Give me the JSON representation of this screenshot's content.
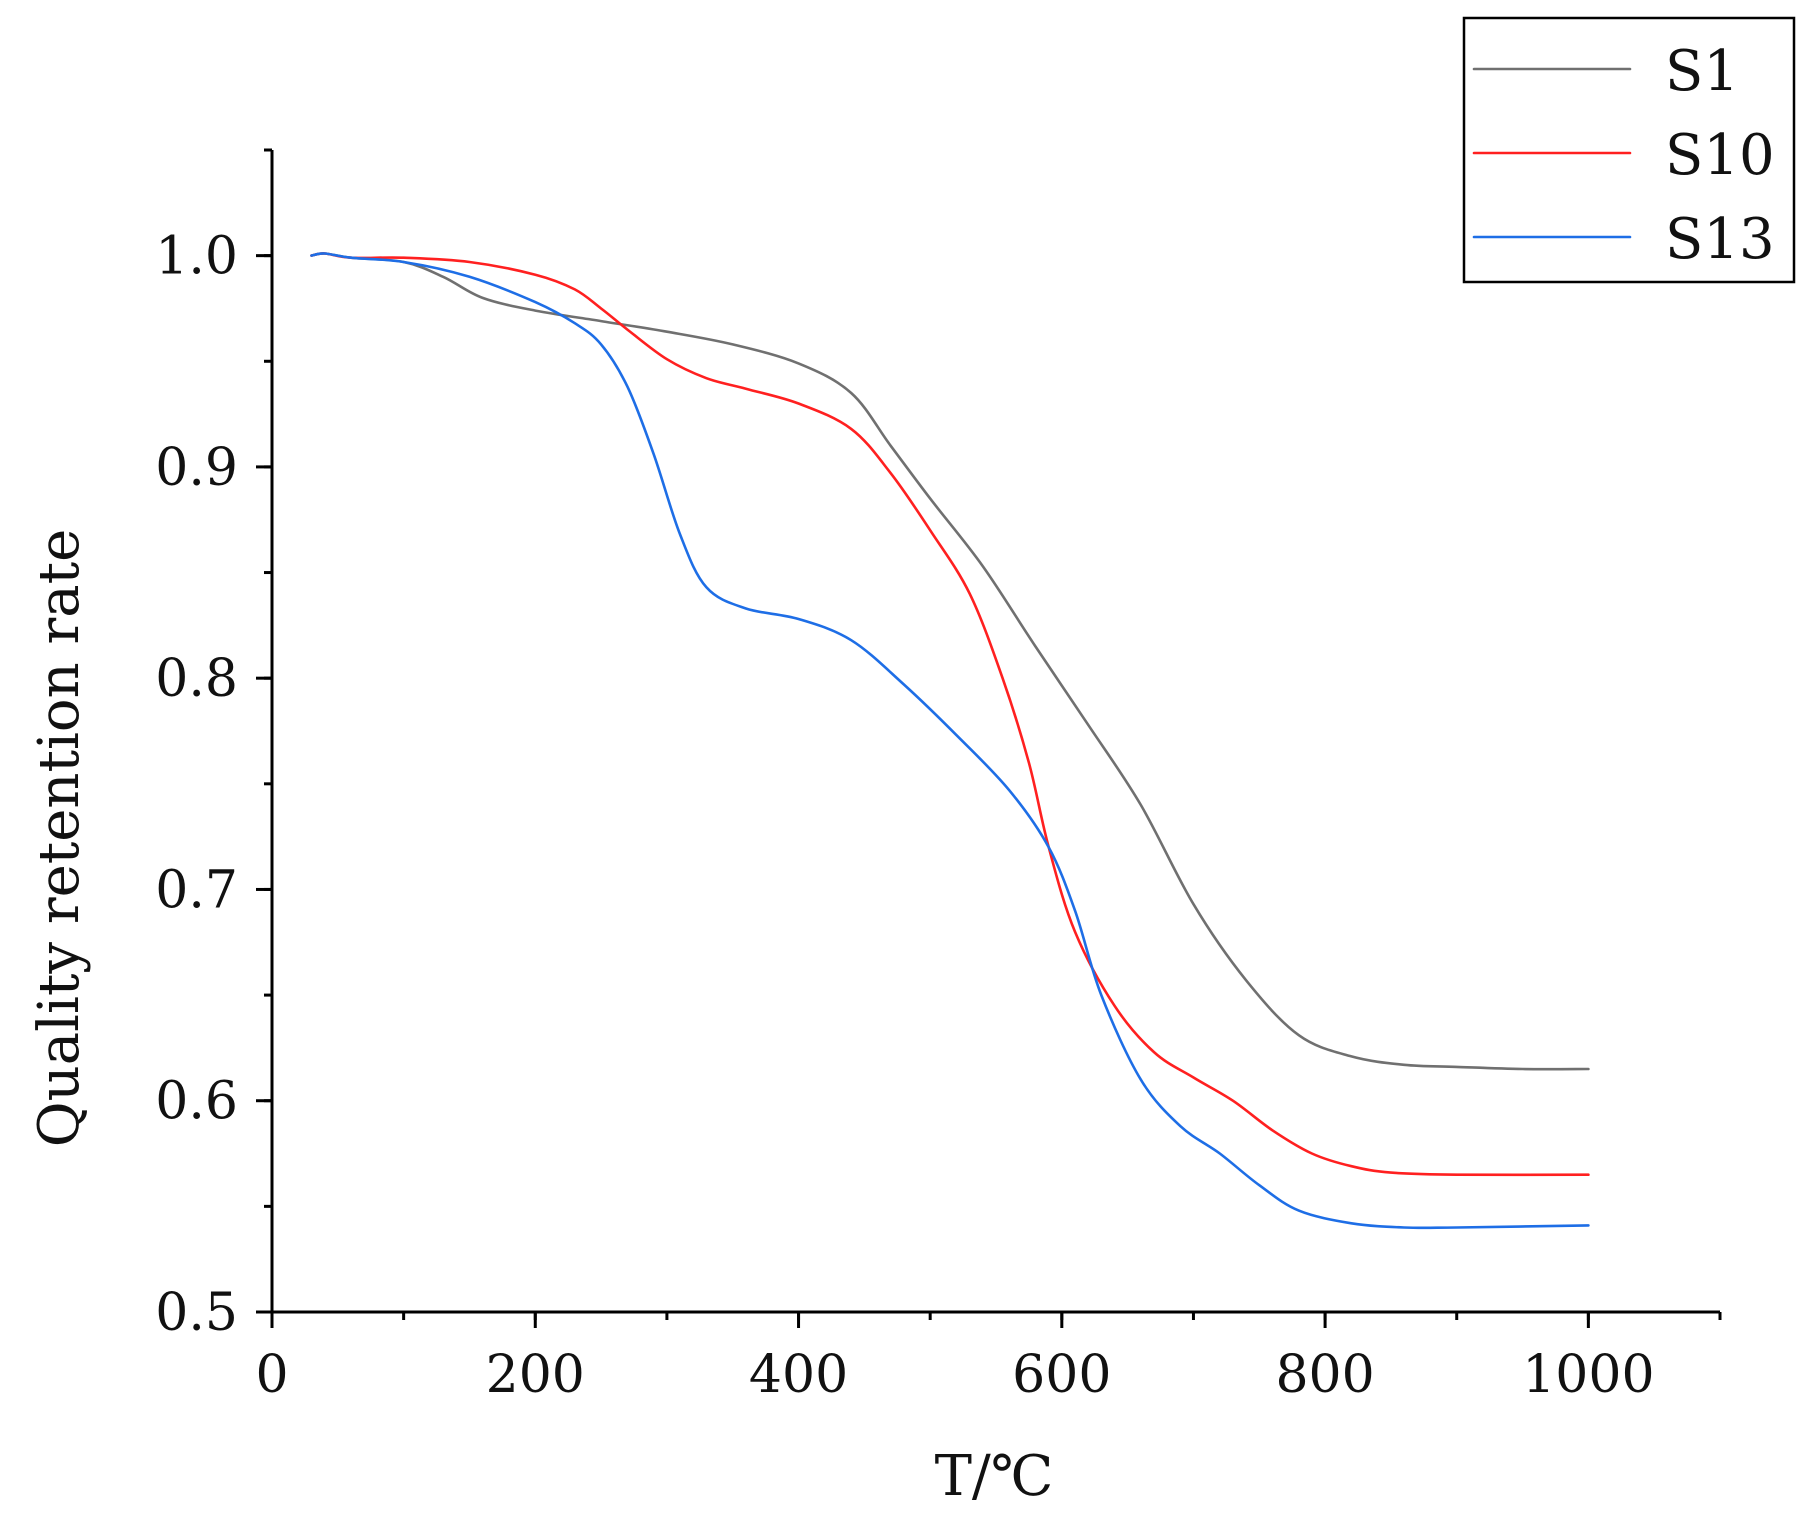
{
  "chart_data": {
    "type": "line",
    "xlabel": "T/℃",
    "ylabel": "Quality retention rate",
    "xlim": [
      0,
      1100
    ],
    "ylim": [
      0.5,
      1.05
    ],
    "x_ticks": [
      0,
      200,
      400,
      600,
      800,
      1000
    ],
    "x_tick_labels": [
      "0",
      "200",
      "400",
      "600",
      "800",
      "1000"
    ],
    "x_minor_step": 100,
    "y_ticks": [
      0.5,
      0.6,
      0.7,
      0.8,
      0.9,
      1.0
    ],
    "y_tick_labels": [
      "0.5",
      "0.6",
      "0.7",
      "0.8",
      "0.9",
      "1.0"
    ],
    "y_minor_step": 0.05,
    "grid": false,
    "legend_position": "top-right",
    "series": [
      {
        "name": "S1",
        "color": "#707070",
        "points": [
          [
            30,
            1.0
          ],
          [
            40,
            1.001
          ],
          [
            60,
            0.999
          ],
          [
            100,
            0.997
          ],
          [
            130,
            0.99
          ],
          [
            160,
            0.98
          ],
          [
            200,
            0.974
          ],
          [
            250,
            0.969
          ],
          [
            300,
            0.964
          ],
          [
            350,
            0.958
          ],
          [
            400,
            0.949
          ],
          [
            440,
            0.935
          ],
          [
            470,
            0.91
          ],
          [
            500,
            0.885
          ],
          [
            540,
            0.853
          ],
          [
            580,
            0.815
          ],
          [
            620,
            0.778
          ],
          [
            660,
            0.74
          ],
          [
            700,
            0.693
          ],
          [
            740,
            0.657
          ],
          [
            780,
            0.631
          ],
          [
            820,
            0.621
          ],
          [
            860,
            0.617
          ],
          [
            900,
            0.616
          ],
          [
            950,
            0.615
          ],
          [
            1000,
            0.615
          ]
        ]
      },
      {
        "name": "S10",
        "color": "#ff2020",
        "points": [
          [
            30,
            1.0
          ],
          [
            40,
            1.001
          ],
          [
            60,
            0.999
          ],
          [
            100,
            0.999
          ],
          [
            150,
            0.997
          ],
          [
            200,
            0.991
          ],
          [
            230,
            0.984
          ],
          [
            250,
            0.975
          ],
          [
            270,
            0.965
          ],
          [
            300,
            0.951
          ],
          [
            330,
            0.942
          ],
          [
            360,
            0.937
          ],
          [
            400,
            0.93
          ],
          [
            440,
            0.918
          ],
          [
            470,
            0.897
          ],
          [
            500,
            0.87
          ],
          [
            530,
            0.84
          ],
          [
            555,
            0.8
          ],
          [
            575,
            0.76
          ],
          [
            590,
            0.72
          ],
          [
            610,
            0.68
          ],
          [
            640,
            0.645
          ],
          [
            670,
            0.623
          ],
          [
            700,
            0.611
          ],
          [
            730,
            0.6
          ],
          [
            760,
            0.586
          ],
          [
            790,
            0.575
          ],
          [
            820,
            0.569
          ],
          [
            850,
            0.566
          ],
          [
            900,
            0.565
          ],
          [
            1000,
            0.565
          ]
        ]
      },
      {
        "name": "S13",
        "color": "#1e6ee6",
        "points": [
          [
            30,
            1.0
          ],
          [
            40,
            1.001
          ],
          [
            60,
            0.999
          ],
          [
            100,
            0.997
          ],
          [
            150,
            0.99
          ],
          [
            200,
            0.978
          ],
          [
            230,
            0.968
          ],
          [
            250,
            0.958
          ],
          [
            270,
            0.938
          ],
          [
            290,
            0.906
          ],
          [
            310,
            0.868
          ],
          [
            330,
            0.843
          ],
          [
            360,
            0.833
          ],
          [
            400,
            0.828
          ],
          [
            440,
            0.818
          ],
          [
            480,
            0.797
          ],
          [
            520,
            0.773
          ],
          [
            560,
            0.747
          ],
          [
            590,
            0.72
          ],
          [
            610,
            0.69
          ],
          [
            630,
            0.65
          ],
          [
            660,
            0.61
          ],
          [
            690,
            0.588
          ],
          [
            720,
            0.575
          ],
          [
            750,
            0.56
          ],
          [
            780,
            0.548
          ],
          [
            820,
            0.542
          ],
          [
            860,
            0.54
          ],
          [
            900,
            0.54
          ],
          [
            1000,
            0.541
          ]
        ]
      }
    ]
  }
}
